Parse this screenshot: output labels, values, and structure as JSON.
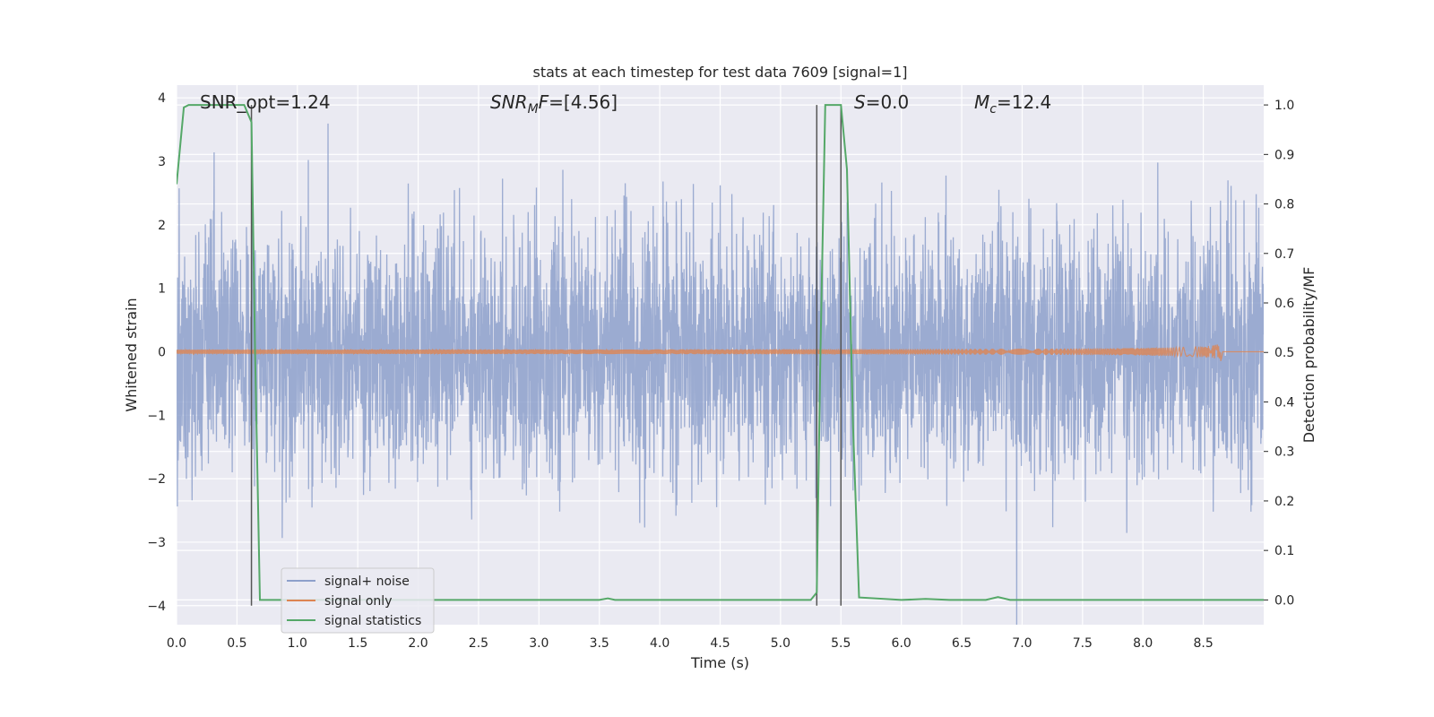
{
  "chart_data": {
    "type": "line",
    "title": "stats at each timestep for test data 7609 [signal=1]",
    "xlabel": "Time (s)",
    "ylabel": "Whitened strain",
    "y2label": "Detection probability/MF",
    "xlim": [
      0.0,
      9.0
    ],
    "ylim": [
      -4.3,
      4.2
    ],
    "y2lim": [
      -0.05,
      1.04
    ],
    "xticks": [
      "0.0",
      "0.5",
      "1.0",
      "1.5",
      "2.0",
      "2.5",
      "3.0",
      "3.5",
      "4.0",
      "4.5",
      "5.0",
      "5.5",
      "6.0",
      "6.5",
      "7.0",
      "7.5",
      "8.0",
      "8.5"
    ],
    "yticks": [
      "4",
      "3",
      "2",
      "1",
      "0",
      "−1",
      "−2",
      "−3",
      "−4"
    ],
    "y2ticks": [
      "1.0",
      "0.9",
      "0.8",
      "0.7",
      "0.6",
      "0.5",
      "0.4",
      "0.3",
      "0.2",
      "0.1",
      "0.0"
    ],
    "grid": true,
    "legend_position": "lower-left",
    "annotations": [
      {
        "text": "SNR_opt=1.24"
      },
      {
        "text": "SNRₘF=[4.56]",
        "plain": "SNRMF=[4.56]"
      },
      {
        "text": "S=0.0"
      },
      {
        "text": "Mᴄ=12.4",
        "plain": "Mc=12.4"
      }
    ],
    "series": [
      {
        "name": "signal+ noise",
        "color": "#8da0cb",
        "kind": "noise",
        "amplitude_std": 0.95,
        "x_range": [
          0.0,
          9.0
        ]
      },
      {
        "name": "signal only",
        "color": "#dd8452",
        "kind": "chirp",
        "merger_time": 8.65,
        "peak_amplitude": 0.22
      },
      {
        "name": "signal statistics",
        "color": "#55a868",
        "axis": "right",
        "x": [
          0.0,
          0.06,
          0.1,
          0.2,
          0.3,
          0.4,
          0.5,
          0.56,
          0.62,
          0.65,
          0.69,
          0.8,
          1.0,
          2.0,
          3.0,
          3.5,
          3.57,
          3.63,
          4.0,
          5.0,
          5.25,
          5.3,
          5.33,
          5.37,
          5.45,
          5.5,
          5.55,
          5.6,
          5.65,
          6.0,
          6.2,
          6.4,
          6.7,
          6.8,
          6.9,
          7.0,
          8.0,
          9.0
        ],
        "y": [
          0.84,
          0.995,
          1.0,
          1.0,
          1.0,
          1.0,
          1.0,
          1.0,
          0.965,
          0.5,
          0.0,
          0.0,
          0.0,
          0.0,
          0.0,
          0.0,
          0.003,
          0.0,
          0.0,
          0.0,
          0.0,
          0.015,
          0.5,
          1.0,
          1.0,
          1.0,
          0.87,
          0.35,
          0.005,
          0.0,
          0.002,
          0.0,
          0.0,
          0.006,
          0.0,
          0.0,
          0.0,
          0.0
        ]
      },
      {
        "name": "",
        "color": "#555555",
        "kind": "vline",
        "x": [
          0.62,
          5.3,
          5.5
        ]
      }
    ]
  }
}
